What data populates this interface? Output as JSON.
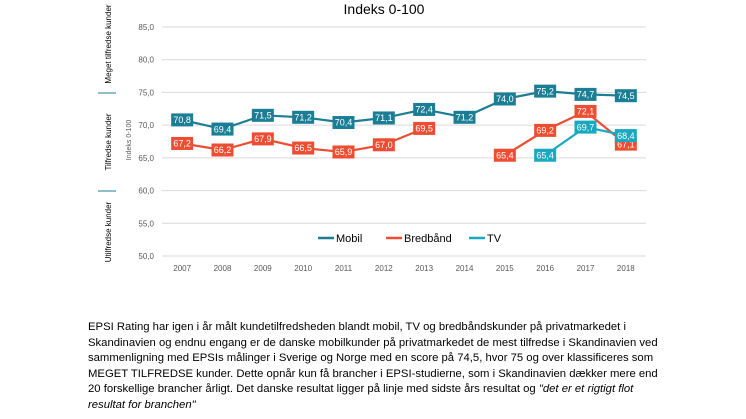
{
  "chart_data": {
    "type": "line",
    "title": "Indeks 0-100",
    "ylabel": "Indeks 0-100",
    "ylim": [
      50,
      85
    ],
    "yticks": [
      "50,0",
      "55,0",
      "60,0",
      "65,0",
      "70,0",
      "75,0",
      "80,0",
      "85,0"
    ],
    "categories": [
      "2007",
      "2008",
      "2009",
      "2010",
      "2011",
      "2012",
      "2013",
      "2014",
      "2015",
      "2016",
      "2017",
      "2018"
    ],
    "grid": true,
    "legend_position": "bottom",
    "bands": [
      {
        "label": "Meget tilfredse kunder"
      },
      {
        "label": "Tilfredse kunder"
      },
      {
        "label": "Utilfredse kunder"
      }
    ],
    "series": [
      {
        "name": "Mobil",
        "color": "#1B7E95",
        "values": [
          70.8,
          69.4,
          71.5,
          71.2,
          70.4,
          71.1,
          72.4,
          71.2,
          74.0,
          75.2,
          74.7,
          74.5
        ],
        "labels": [
          "70,8",
          "69,4",
          "71,5",
          "71,2",
          "70,4",
          "71,1",
          "72,4",
          "71,2",
          "74,0",
          "75,2",
          "74,7",
          "74,5"
        ]
      },
      {
        "name": "Bredbånd",
        "color": "#EE4D32",
        "values": [
          67.2,
          66.2,
          67.9,
          66.5,
          65.9,
          67.0,
          69.5,
          null,
          65.4,
          69.2,
          72.1,
          67.1
        ],
        "labels": [
          "67,2",
          "66,2",
          "67,9",
          "66,5",
          "65,9",
          "67,0",
          "69,5",
          "",
          "65,4",
          "69,2",
          "72,1",
          "67,1"
        ]
      },
      {
        "name": "TV",
        "color": "#1AA7C0",
        "values": [
          null,
          null,
          null,
          null,
          null,
          null,
          null,
          null,
          null,
          65.4,
          69.7,
          68.4
        ],
        "labels": [
          "",
          "",
          "",
          "",
          "",
          "",
          "",
          "",
          "",
          "65,4",
          "69,7",
          "68,4"
        ]
      }
    ]
  },
  "body": {
    "text_1": "EPSI Rating har igen i år målt kundetilfredsheden blandt mobil, TV og bredbåndskunder på privatmarkedet i Skandinavien og endnu engang er de danske mobilkunder på privatmarkedet de mest tilfredse i Skandinavien ved sammenligning med EPSIs målinger i Sverige og Norge med en score på 74,5, hvor 75 og over klassificeres som MEGET TILFREDSE kunder. Dette opnår kun få brancher i EPSI-studierne, som i Skandinavien dækker mere end 20 forskellige brancher årligt. Det danske resultat ligger på linje med sidste års resultat og ",
    "text_2": "\"det er et rigtigt flot resultat for branchen\""
  }
}
